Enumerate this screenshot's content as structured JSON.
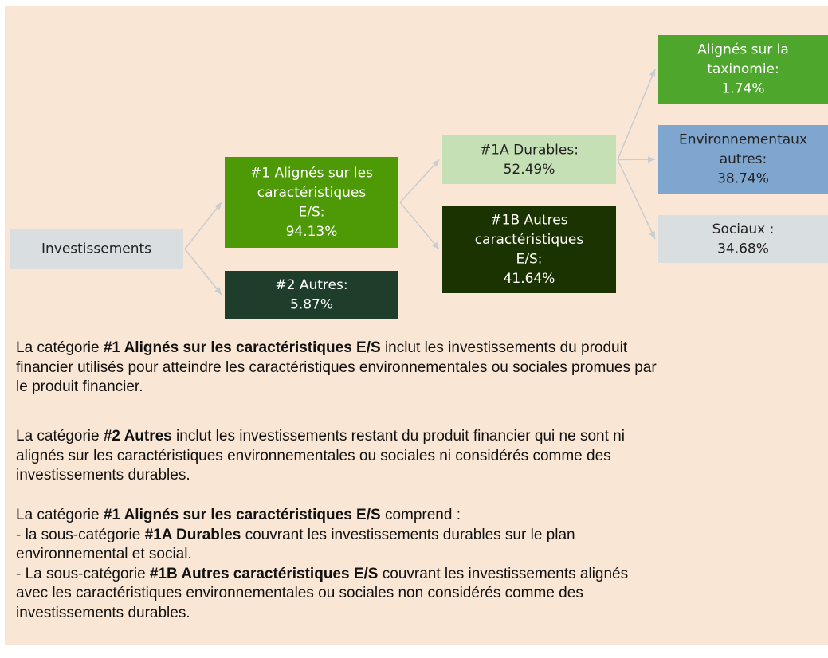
{
  "nodes": [
    {
      "lines": [
        "Investissements"
      ],
      "color": "#d9dee0"
    },
    {
      "lines": [
        "#1 Alignés sur les",
        "caractéristiques",
        "E/S:",
        "94.13%"
      ],
      "color": "#4e9a06"
    },
    {
      "lines": [
        "#2 Autres:",
        "5.87%"
      ],
      "color": "#1f3d2b"
    },
    {
      "lines": [
        "#1A Durables:",
        "52.49%"
      ],
      "color": "#c5e0b4"
    },
    {
      "lines": [
        "#1B Autres",
        "caractéristiques",
        "E/S:",
        "41.64%"
      ],
      "color": "#1a3300"
    },
    {
      "lines": [
        "Alignés sur la",
        "taxinomie:",
        "1.74%"
      ],
      "color": "#4ea72c"
    },
    {
      "lines": [
        "Environnementaux",
        "autres:",
        "38.74%"
      ],
      "color": "#7ea6cf"
    },
    {
      "lines": [
        "Sociaux :",
        "34.68%"
      ],
      "color": "#d9dee0"
    }
  ],
  "paragraphs": [
    [
      [
        {
          "text": "La catégorie "
        },
        {
          "text": "#1 Alignés sur les caractéristiques E/S",
          "bold": true
        },
        {
          "text": " inclut les investissements du produit"
        }
      ],
      [
        {
          "text": "financier utilisés pour atteindre les caractéristiques environnementales ou sociales promues par"
        }
      ],
      [
        {
          "text": "le produit financier."
        }
      ]
    ],
    [
      [
        {
          "text": "La catégorie "
        },
        {
          "text": "#2 Autres",
          "bold": true
        },
        {
          "text": " inclut les investissements restant du produit financier qui ne sont ni"
        }
      ],
      [
        {
          "text": "alignés sur les caractéristiques environnementales ou sociales ni considérés comme des"
        }
      ],
      [
        {
          "text": "investissements durables."
        }
      ]
    ],
    [
      [
        {
          "text": "La catégorie "
        },
        {
          "text": "#1 Alignés sur les caractéristiques E/S",
          "bold": true
        },
        {
          "text": " comprend :"
        }
      ],
      [
        {
          "text": "- la sous-catégorie "
        },
        {
          "text": "#1A Durables",
          "bold": true
        },
        {
          "text": " couvrant les investissements durables sur le plan"
        }
      ],
      [
        {
          "text": "environnemental et social."
        }
      ],
      [
        {
          "text": "- La sous-catégorie "
        },
        {
          "text": "#1B Autres caractéristiques E/S",
          "bold": true
        },
        {
          "text": " couvrant les investissements alignés"
        }
      ],
      [
        {
          "text": "avec les caractéristiques environnementales ou sociales non considérés comme des"
        }
      ],
      [
        {
          "text": "investissements durables."
        }
      ]
    ]
  ]
}
